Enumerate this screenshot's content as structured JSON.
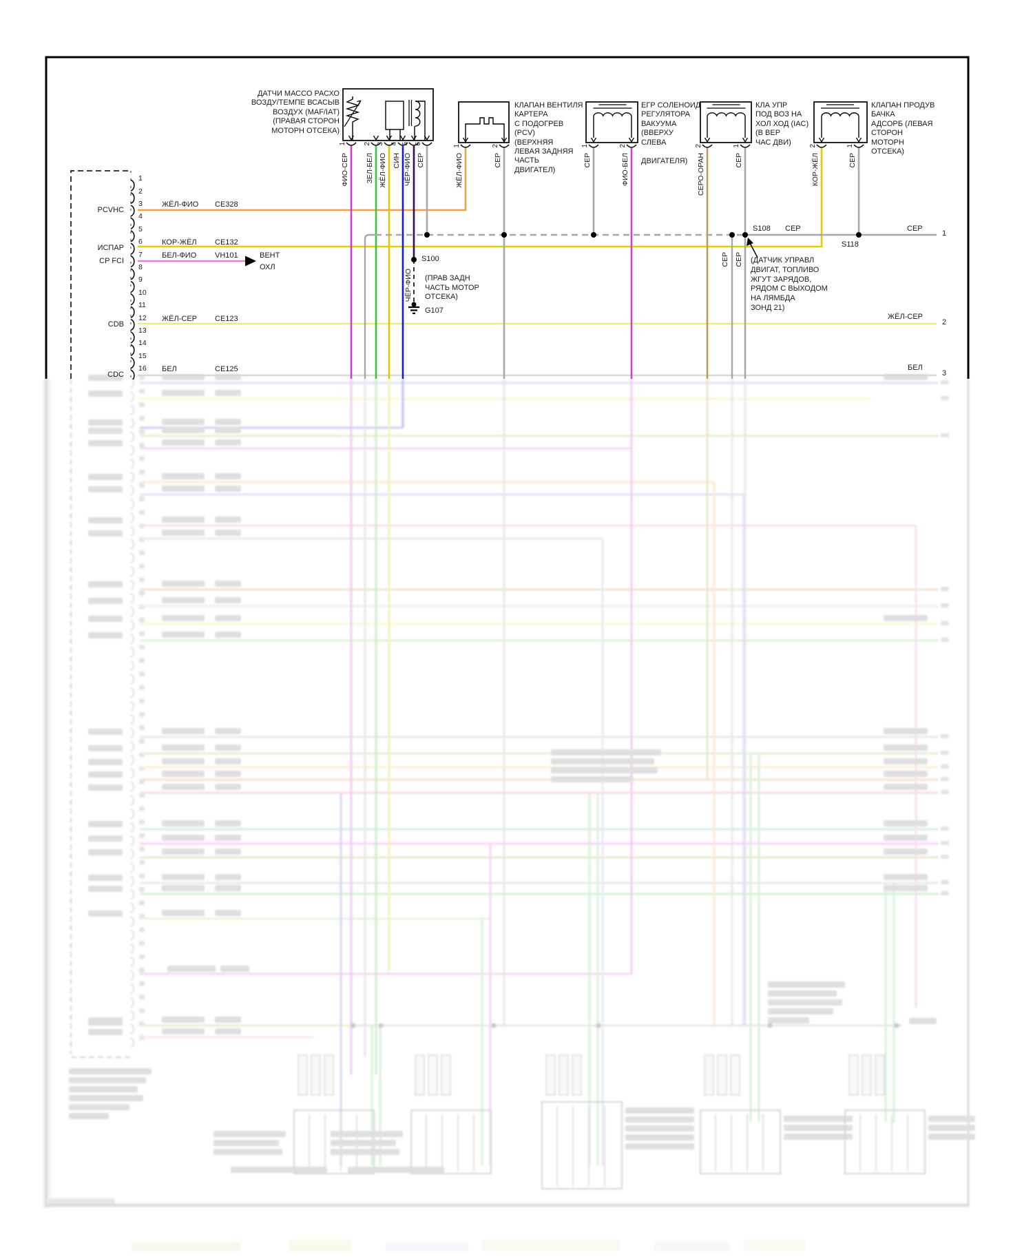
{
  "diagram": {
    "components": {
      "maf": {
        "label_lines": [
          "ДАТЧИ МАССО РАСХО",
          "ВОЗДУ/ТЕМПЕ ВСАСЫВ",
          "ВОЗДУХ (MAF/IAT)",
          "(ПРАВАЯ СТОРОН",
          "МОТОРН ОТСЕКА)"
        ],
        "pins": [
          {
            "n": "1",
            "wire": "ФИО-СЕР"
          },
          {
            "n": "2",
            "wire": "ЗЕЛ-БЕЛ"
          },
          {
            "n": "3",
            "wire": "ЖЁЛ-ФИО"
          },
          {
            "n": "4",
            "wire": "СИН"
          },
          {
            "n": "5",
            "wire": "ЧЁР-ФИО"
          },
          {
            "n": "6",
            "wire": "СЕР"
          }
        ]
      },
      "pcv": {
        "label_lines": [
          "КЛАПАН ВЕНТИЛЯ",
          "КАРТЕРА",
          "С ПОДОГРЕВ",
          "(PCV)",
          "(ВЕРХНЯЯ",
          "ЛЕВАЯ ЗАДНЯЯ",
          "ЧАСТЬ",
          "ДВИГАТЕЛ)"
        ],
        "pins": [
          {
            "n": "1",
            "wire": "ЖЁЛ-ФИО"
          },
          {
            "n": "2",
            "wire": "СЕР"
          }
        ]
      },
      "egr": {
        "label_lines": [
          "ЕГР СОЛЕНОИД",
          "РЕГУЛЯТОРА",
          "ВАКУУМА",
          "(ВВЕРХУ",
          "СЛЕВА"
        ],
        "label_line_bottom": "ДВИГАТЕЛЯ)",
        "pins": [
          {
            "n": "1",
            "wire": "СЕР"
          },
          {
            "n": "2",
            "wire": "ФИО-БЕЛ"
          }
        ]
      },
      "iac": {
        "label_lines": [
          "КЛА УПР",
          "ПОД ВОЗ НА",
          "ХОЛ ХОД (IAC)",
          "(В ВЕР",
          "ЧАС ДВИ)"
        ],
        "pins": [
          {
            "n": "2",
            "wire": "СЕРО-ОРАН"
          },
          {
            "n": "1",
            "wire": "СЕР"
          }
        ]
      },
      "canister": {
        "label_lines": [
          "КЛАПАН ПРОДУВ",
          "БАЧКА",
          "АДСОРБ (ЛЕВАЯ",
          "СТОРОН",
          "МОТОРН",
          "ОТСЕКА)"
        ],
        "pins": [
          {
            "n": "2",
            "wire": "КОР-ЖЁЛ"
          },
          {
            "n": "1",
            "wire": "СЕР"
          }
        ]
      }
    },
    "connector": {
      "pin_numbers": [
        "1",
        "2",
        "3",
        "4",
        "5",
        "6",
        "7",
        "8",
        "9",
        "10",
        "11",
        "12",
        "13",
        "14",
        "15",
        "16"
      ],
      "rows": [
        {
          "pin": "3",
          "name": "PCVHC",
          "wire": "ЖЁЛ-ФИО",
          "code": "CE328"
        },
        {
          "pin": "6",
          "name": "ИСПАР",
          "wire": "КОР-ЖЁЛ",
          "code": "CE132"
        },
        {
          "pin": "7",
          "name": "CP FCI",
          "wire": "БЕЛ-ФИО",
          "code": "VH101"
        },
        {
          "pin": "12",
          "name": "CDB",
          "wire": "ЖЁЛ-СЕР",
          "code": "CE123"
        },
        {
          "pin": "16",
          "name": "CDC",
          "wire": "БЕЛ",
          "code": "CE125"
        }
      ]
    },
    "arrow_out": {
      "line1": "ВЕНТ",
      "line2": "ОХЛ"
    },
    "splices": {
      "s100": "S100",
      "s108": "S108",
      "s118": "S118",
      "g107": "G107",
      "s108_wire": "СЕР",
      "s108_wire2": "СЕР",
      "s108_branches": [
        "СЕР",
        "СЕР"
      ]
    },
    "notes": {
      "s100_wire": "ЧЁР-ФИО",
      "s100_lines": [
        "(ПРАВ ЗАДН",
        "ЧАСТЬ МОТОР",
        "ОТСЕКА)"
      ],
      "s108_lines": [
        "(ДАТЧИК УПРАВЛ",
        "ДВИГАТ, ТОПЛИВО",
        "ЖГУТ ЗАРЯДОВ,",
        "РЯДОМ С ВЫХОДОМ",
        "НА ЛЯМБДА",
        "ЗОНД 21)"
      ]
    },
    "right_edge": [
      {
        "label": "СЕР",
        "num": "1"
      },
      {
        "label": "ЖЁЛ-СЕР",
        "num": "2"
      },
      {
        "label": "БЕЛ",
        "num": "3"
      }
    ],
    "colors": {
      "yellow_violet_h": "#efa040",
      "brown_yellow": "#e0cf00",
      "white_violet": "#e87fd4",
      "yellow_gray": "#ecea82",
      "white_wire": "#d8d8d8",
      "violet_gray": "#cc3fcc",
      "green_white": "#3cc43c",
      "yellow_violet_v": "#d8cc00",
      "blue": "#1a1acc",
      "black_violet": "#3a0d4d",
      "gray": "#a8a8a8",
      "gray_orange": "#bf9b5a",
      "violet_white": "#d23fc8"
    }
  }
}
